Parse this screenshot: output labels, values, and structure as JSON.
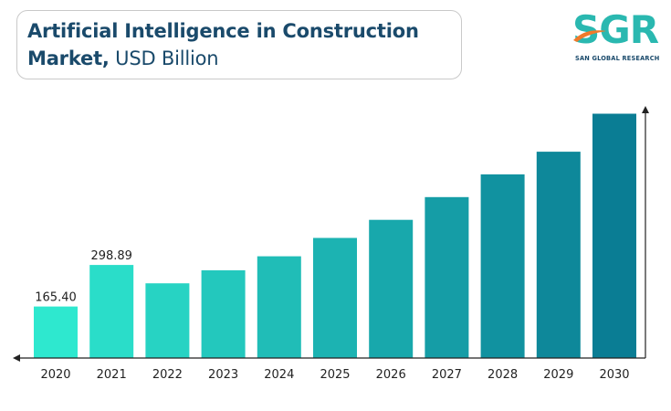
{
  "title": {
    "line1": "Artificial Intelligence in Construction",
    "line2_bold": "Market,",
    "line2_unit": " USD Billion"
  },
  "logo": {
    "text": "SGR",
    "subtitle": "SAN GLOBAL RESEARCH"
  },
  "colors": {
    "title": "#1a4a6b",
    "logo": "#2ab8b0",
    "bar_start": "#2ee8cf",
    "bar_end": "#0a7d94",
    "axis": "#222222"
  },
  "chart_data": {
    "type": "bar",
    "categories": [
      "2020",
      "2021",
      "2022",
      "2023",
      "2024",
      "2025",
      "2026",
      "2027",
      "2028",
      "2029",
      "2030"
    ],
    "values": [
      165.4,
      298.89,
      240,
      282,
      327,
      386,
      444,
      517,
      590,
      663,
      785
    ],
    "data_labels": [
      "165.40",
      "298.89",
      "",
      "",
      "",
      "",
      "",
      "",
      "",
      "",
      ""
    ],
    "ylim": [
      0,
      800
    ],
    "grid": false,
    "legend": "none"
  }
}
